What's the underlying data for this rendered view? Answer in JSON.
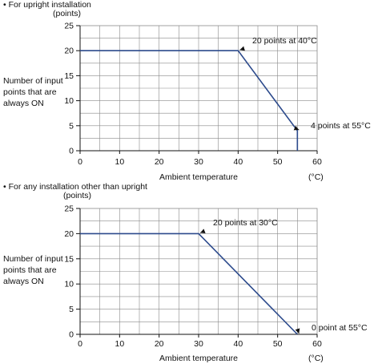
{
  "chart_data": [
    {
      "type": "line",
      "title": "• For upright installation",
      "y_unit": "(points)",
      "ylabel": [
        "Number of input",
        "points that are",
        "always ON"
      ],
      "xlabel": "Ambient temperature",
      "x_unit": "(°C)",
      "xlim": [
        0,
        60
      ],
      "ylim": [
        0,
        25
      ],
      "x_ticks": [
        0,
        10,
        20,
        30,
        40,
        50,
        60
      ],
      "y_ticks": [
        0,
        5,
        10,
        15,
        20,
        25
      ],
      "grid": true,
      "series": [
        {
          "points": [
            [
              0,
              20
            ],
            [
              40,
              20
            ],
            [
              55,
              4
            ],
            [
              55,
              0
            ]
          ]
        }
      ],
      "annotations": [
        {
          "text": "20 points at 40°C",
          "x": 40,
          "y": 20
        },
        {
          "text": "4 points at 55°C",
          "x": 55,
          "y": 4
        }
      ],
      "colors": {
        "line": "#2c4a8c",
        "grid": "#8a8a8a",
        "axis": "#111111"
      }
    },
    {
      "type": "line",
      "title": "• For any installation other than upright",
      "y_unit": "(points)",
      "ylabel": [
        "Number of input",
        "points that are",
        "always ON"
      ],
      "xlabel": "Ambient temperature",
      "x_unit": "(°C)",
      "xlim": [
        0,
        60
      ],
      "ylim": [
        0,
        25
      ],
      "x_ticks": [
        0,
        10,
        20,
        30,
        40,
        50,
        60
      ],
      "y_ticks": [
        0,
        5,
        10,
        15,
        20,
        25
      ],
      "grid": true,
      "series": [
        {
          "points": [
            [
              0,
              20
            ],
            [
              30,
              20
            ],
            [
              55,
              0
            ]
          ]
        }
      ],
      "annotations": [
        {
          "text": "20 points at 30°C",
          "x": 30,
          "y": 20
        },
        {
          "text": "0 point at 55°C",
          "x": 55,
          "y": 0
        }
      ],
      "colors": {
        "line": "#2c4a8c",
        "grid": "#8a8a8a",
        "axis": "#111111"
      }
    }
  ]
}
